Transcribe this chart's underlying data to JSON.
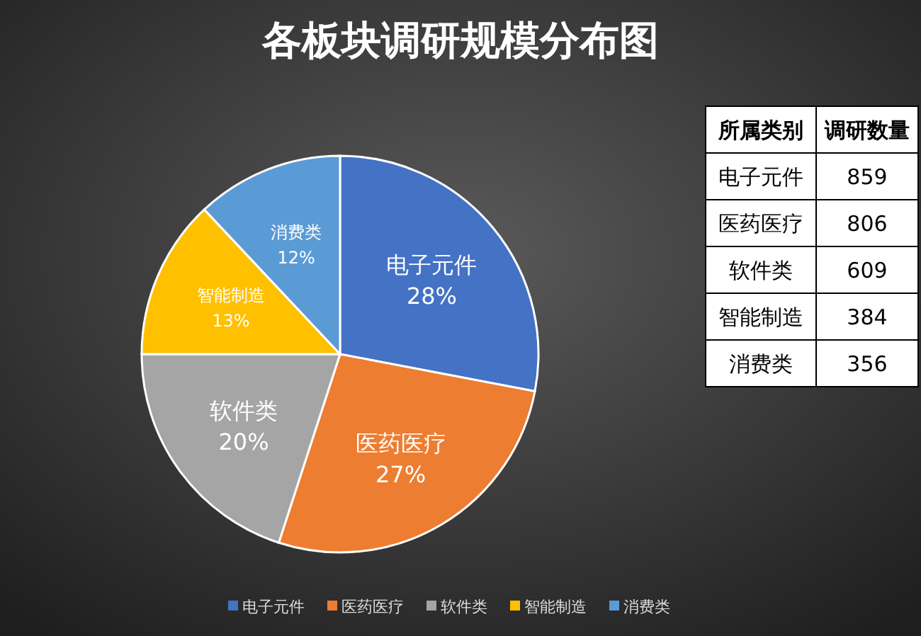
{
  "chart_data": [
    {
      "type": "pie",
      "title": "各板块调研规模分布图",
      "categories": [
        "电子元件",
        "医药医疗",
        "软件类",
        "智能制造",
        "消费类"
      ],
      "values": [
        28,
        27,
        20,
        13,
        12
      ],
      "value_labels": [
        "28%",
        "27%",
        "20%",
        "13%",
        "12%"
      ],
      "colors": [
        "#4472c4",
        "#ed7d31",
        "#a5a5a5",
        "#ffc000",
        "#5b9bd5"
      ],
      "legend": "bottom"
    },
    {
      "type": "other",
      "categories": [
        "电子元件",
        "医药医疗",
        "软件类",
        "智能制造",
        "消费类"
      ],
      "values": [
        859,
        806,
        609,
        384,
        356
      ],
      "data_labels": true,
      "annotations": [
        "所属类别",
        "调研数量"
      ]
    }
  ]
}
